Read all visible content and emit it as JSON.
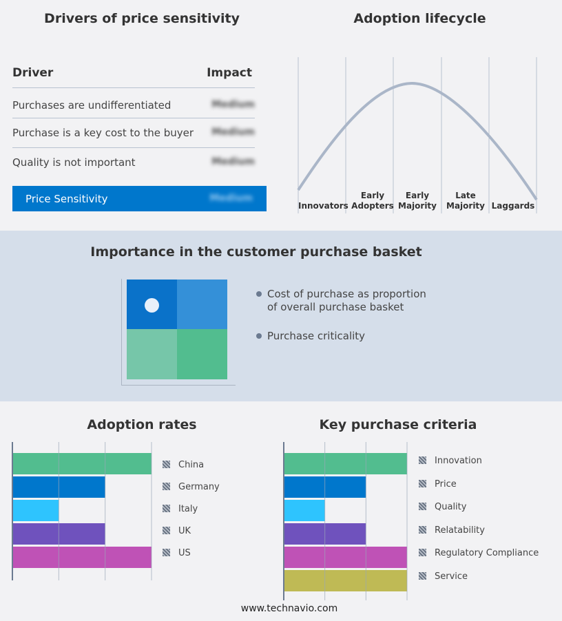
{
  "drivers": {
    "title": "Drivers of price sensitivity",
    "col_driver": "Driver",
    "col_impact": "Impact",
    "rows": [
      {
        "driver": "Purchases are undifferentiated",
        "impact": "Medium"
      },
      {
        "driver": "Purchase is a key cost to the buyer",
        "impact": "Medium"
      },
      {
        "driver": "Quality is not important",
        "impact": "Medium"
      }
    ],
    "summary": {
      "label": "Price Sensitivity",
      "impact": "Medium"
    }
  },
  "lifecycle": {
    "title": "Adoption lifecycle",
    "stages": [
      "Innovators",
      "Early Adopters",
      "Early Majority",
      "Late Majority",
      "Laggards"
    ]
  },
  "basket": {
    "title": "Importance in the customer purchase basket",
    "legend": [
      "Cost of purchase as proportion of overall purchase basket",
      "Purchase criticality"
    ],
    "colors": [
      "#0a72c9",
      "#3490d8",
      "#76c6a9",
      "#52bd8f"
    ]
  },
  "chart_data": [
    {
      "type": "bar",
      "title": "Adoption rates",
      "categories": [
        "China",
        "Germany",
        "Italy",
        "UK",
        "US"
      ],
      "values": [
        3,
        2,
        1,
        2,
        3
      ],
      "xlim": [
        0,
        3
      ],
      "grid": true,
      "legend": "right",
      "colors": [
        "#52bd8f",
        "#0077cc",
        "#2ec4fe",
        "#6f52bd",
        "#bf52b6"
      ]
    },
    {
      "type": "bar",
      "title": "Key purchase criteria",
      "categories": [
        "Innovation",
        "Price",
        "Quality",
        "Relatability",
        "Regulatory Compliance",
        "Service"
      ],
      "values": [
        3,
        2,
        1,
        2,
        3,
        3
      ],
      "xlim": [
        0,
        3
      ],
      "grid": true,
      "legend": "right",
      "colors": [
        "#52bd8f",
        "#0077cc",
        "#2ec4fe",
        "#6f52bd",
        "#bf52b6",
        "#bfba55"
      ]
    }
  ],
  "footer": "www.technavio.com"
}
